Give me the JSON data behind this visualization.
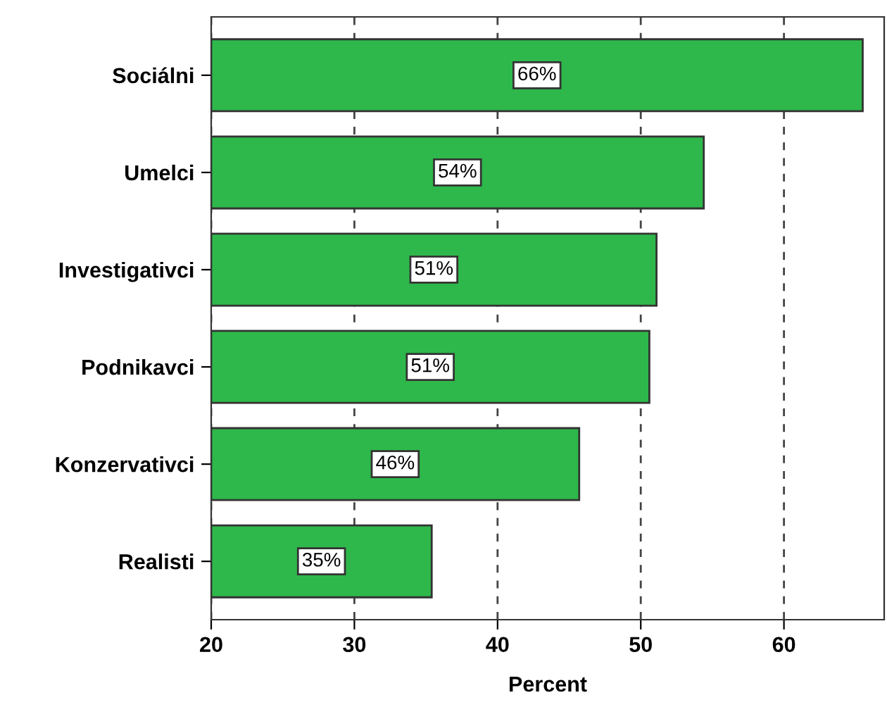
{
  "chart_data": {
    "type": "bar",
    "orientation": "horizontal",
    "xlabel": "Percent",
    "categories": [
      "Sociálni",
      "Umelci",
      "Investigativci",
      "Podnikavci",
      "Konzervativci",
      "Realisti"
    ],
    "values": [
      65.5,
      54.4,
      51.1,
      50.6,
      45.7,
      35.4
    ],
    "value_labels": [
      "66%",
      "54%",
      "51%",
      "51%",
      "46%",
      "35%"
    ],
    "color": "#2eb84b",
    "xlim": [
      20,
      67
    ],
    "xticks": [
      20,
      30,
      40,
      50,
      60
    ],
    "grid": "x",
    "line_style": "dashed"
  }
}
